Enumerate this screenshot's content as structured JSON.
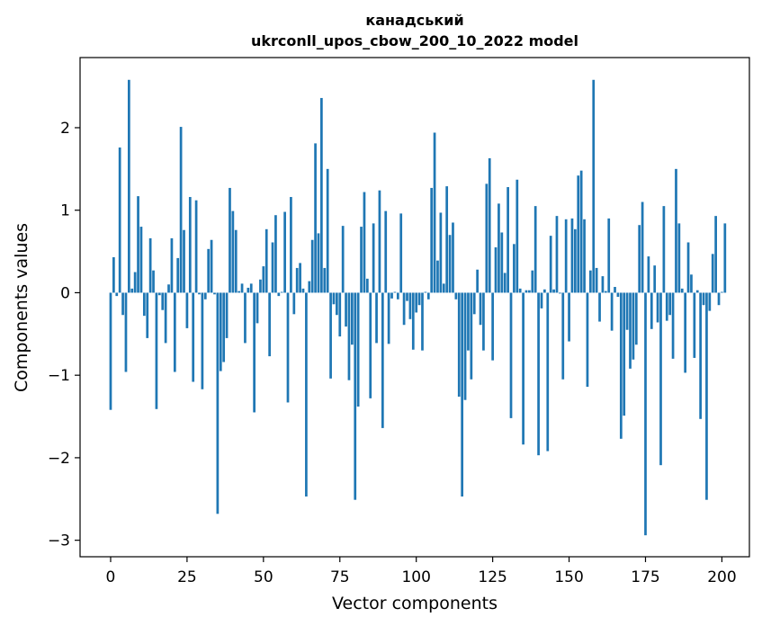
{
  "chart_data": {
    "type": "bar",
    "title_line1": "канадський",
    "title_line2": "ukrconll_upos_cbow_200_10_2022 model",
    "xlabel": "Vector components",
    "ylabel": "Components values",
    "xlim": [
      -10,
      209
    ],
    "ylim": [
      -3.2,
      2.85
    ],
    "xticks": [
      0,
      25,
      50,
      75,
      100,
      125,
      150,
      175,
      200
    ],
    "yticks": [
      -3,
      -2,
      -1,
      0,
      1,
      2
    ],
    "bar_color": "#1f77b4",
    "grid": false,
    "values": [
      -1.42,
      0.43,
      -0.04,
      1.76,
      -0.27,
      -0.96,
      2.58,
      0.05,
      0.25,
      1.17,
      0.8,
      -0.28,
      -0.55,
      0.66,
      0.27,
      -1.41,
      -0.03,
      -0.21,
      -0.61,
      0.1,
      0.66,
      -0.96,
      0.42,
      2.01,
      0.76,
      -0.43,
      1.16,
      -1.08,
      1.12,
      -0.02,
      -1.17,
      -0.08,
      0.53,
      0.64,
      -0.02,
      -2.68,
      -0.95,
      -0.84,
      -0.55,
      1.27,
      0.99,
      0.76,
      0.02,
      0.11,
      -0.61,
      0.06,
      0.11,
      -1.45,
      -0.37,
      0.16,
      0.32,
      0.77,
      -0.77,
      0.61,
      0.94,
      -0.04,
      0.01,
      0.98,
      -1.33,
      1.16,
      -0.26,
      0.3,
      0.36,
      0.05,
      -2.47,
      0.14,
      0.64,
      1.81,
      0.72,
      2.36,
      0.3,
      1.5,
      -1.04,
      -0.14,
      -0.27,
      -0.53,
      0.81,
      -0.41,
      -1.06,
      -0.63,
      -2.51,
      -1.38,
      0.8,
      1.22,
      0.17,
      -1.28,
      0.84,
      -0.61,
      1.24,
      -1.64,
      0.99,
      -0.62,
      -0.07,
      0.01,
      -0.08,
      0.96,
      -0.39,
      -0.1,
      -0.32,
      -0.69,
      -0.24,
      -0.15,
      -0.7,
      0.01,
      -0.08,
      1.27,
      1.94,
      0.39,
      0.97,
      0.11,
      1.29,
      0.7,
      0.85,
      -0.08,
      -1.26,
      -2.47,
      -1.3,
      -0.7,
      -1.05,
      -0.26,
      0.28,
      -0.39,
      -0.7,
      1.32,
      1.63,
      -0.82,
      0.55,
      1.08,
      0.73,
      0.24,
      1.28,
      -1.52,
      0.59,
      1.37,
      0.05,
      -1.84,
      0.03,
      0.03,
      0.27,
      1.05,
      -1.97,
      -0.19,
      0.04,
      -1.92,
      0.69,
      0.04,
      0.93,
      -0.01,
      -1.05,
      0.89,
      -0.59,
      0.9,
      0.77,
      1.42,
      1.48,
      0.89,
      -1.14,
      0.27,
      2.58,
      0.3,
      -0.35,
      0.2,
      0.02,
      0.9,
      -0.46,
      0.07,
      -0.05,
      -1.77,
      -1.49,
      -0.45,
      -0.92,
      -0.81,
      -0.63,
      0.82,
      1.1,
      -2.94,
      0.44,
      -0.44,
      0.33,
      -0.36,
      -2.09,
      1.05,
      -0.34,
      -0.27,
      -0.8,
      1.5,
      0.84,
      0.05,
      -0.97,
      0.61,
      0.22,
      -0.79,
      0.03,
      -1.53,
      -0.15,
      -2.51,
      -0.22,
      0.47,
      0.93,
      -0.15,
      0.01,
      0.84
    ]
  }
}
